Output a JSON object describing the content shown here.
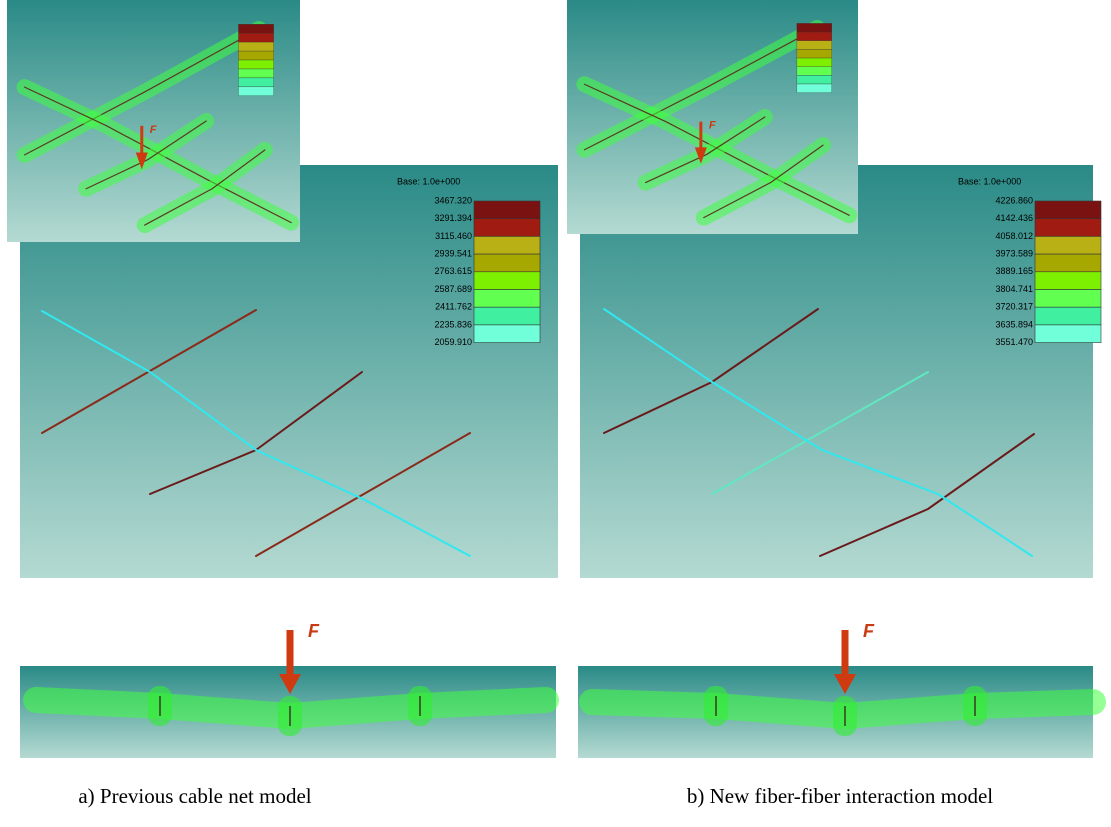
{
  "panels": [
    {
      "caption": "a) Previous cable net model",
      "force_label": "F",
      "base_label": "Base: 1.0e+000",
      "legend": [
        "3467.320",
        "3291.394",
        "3115.460",
        "2939.541",
        "2763.615",
        "2587.689",
        "2411.762",
        "2235.836",
        "2059.910"
      ]
    },
    {
      "caption": "b) New fiber-fiber interaction model",
      "force_label": "F",
      "base_label": "Base: 1.0e+000",
      "legend": [
        "4226.860",
        "4142.436",
        "4058.012",
        "3973.589",
        "3889.165",
        "3804.741",
        "3720.317",
        "3635.894",
        "3551.470"
      ]
    }
  ]
}
